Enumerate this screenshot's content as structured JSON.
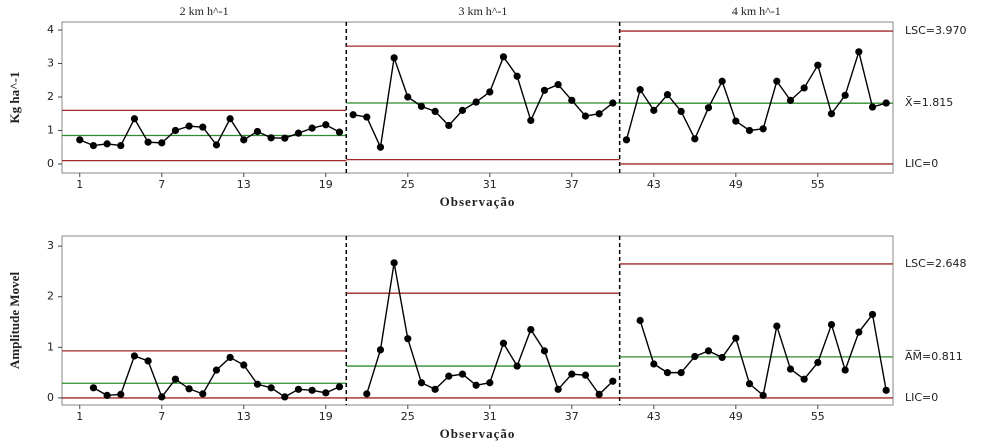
{
  "chart_data": [
    {
      "type": "line",
      "y_label": "Kg ha^-1",
      "x_label": "Observação",
      "x": [
        1,
        2,
        3,
        4,
        5,
        6,
        7,
        8,
        9,
        10,
        11,
        12,
        13,
        14,
        15,
        16,
        17,
        18,
        19,
        20,
        21,
        22,
        23,
        24,
        25,
        26,
        27,
        28,
        29,
        30,
        31,
        32,
        33,
        34,
        35,
        36,
        37,
        38,
        39,
        40,
        41,
        42,
        43,
        44,
        45,
        46,
        47,
        48,
        49,
        50,
        51,
        52,
        53,
        54,
        55,
        56,
        57,
        58,
        59,
        60
      ],
      "series": [
        {
          "color": "#000000",
          "values": [
            0.72,
            0.55,
            0.6,
            0.55,
            1.35,
            0.65,
            0.63,
            1.0,
            1.13,
            1.1,
            0.57,
            1.35,
            0.72,
            0.97,
            0.78,
            0.77,
            0.92,
            1.07,
            1.17,
            0.95,
            1.47,
            1.4,
            0.5,
            3.17,
            2.0,
            1.72,
            1.57,
            1.15,
            1.6,
            1.85,
            2.15,
            3.2,
            2.62,
            1.3,
            2.2,
            2.37,
            1.9,
            1.43,
            1.5,
            1.82,
            0.72,
            2.22,
            1.6,
            2.07,
            1.57,
            0.75,
            1.68,
            2.47,
            1.28,
            1.0,
            1.05,
            2.47,
            1.9,
            2.27,
            2.95,
            1.5,
            2.05,
            3.35,
            1.7,
            1.82
          ]
        }
      ],
      "phases": [
        {
          "label": "2 km h^-1",
          "start": 1,
          "end": 20,
          "ucl": 1.6,
          "center": 0.85,
          "lcl": 0.1
        },
        {
          "label": "3 km h^-1",
          "start": 21,
          "end": 40,
          "ucl": 3.52,
          "center": 1.82,
          "lcl": 0.13
        },
        {
          "label": "4 km h^-1",
          "start": 41,
          "end": 60,
          "ucl": 3.97,
          "center": 1.815,
          "lcl": 0
        }
      ],
      "limit_labels": [
        "LSC=3.970",
        "X̄=1.815",
        "LIC=0"
      ],
      "limit_color": "#a02828",
      "center_color": "#2e8b2e",
      "xlim": [
        -0.3,
        60.5
      ],
      "xticks": [
        1,
        7,
        13,
        19,
        25,
        31,
        37,
        43,
        49,
        55
      ],
      "ylim": [
        -0.27,
        4.24
      ],
      "yticks": [
        0,
        1,
        2,
        3,
        4
      ]
    },
    {
      "type": "line",
      "y_label": "Amplitude Movel",
      "x_label": "Observação",
      "x": [
        1,
        2,
        3,
        4,
        5,
        6,
        7,
        8,
        9,
        10,
        11,
        12,
        13,
        14,
        15,
        16,
        17,
        18,
        19,
        20,
        21,
        22,
        23,
        24,
        25,
        26,
        27,
        28,
        29,
        30,
        31,
        32,
        33,
        34,
        35,
        36,
        37,
        38,
        39,
        40,
        41,
        42,
        43,
        44,
        45,
        46,
        47,
        48,
        49,
        50,
        51,
        52,
        53,
        54,
        55,
        56,
        57,
        58,
        59,
        60
      ],
      "series": [
        {
          "color": "#000000",
          "values": [
            null,
            0.2,
            0.05,
            0.07,
            0.83,
            0.73,
            0.02,
            0.37,
            0.18,
            0.08,
            0.55,
            0.8,
            0.65,
            0.27,
            0.2,
            0.02,
            0.17,
            0.15,
            0.1,
            0.22,
            null,
            0.08,
            0.95,
            2.67,
            1.17,
            0.3,
            0.17,
            0.43,
            0.47,
            0.25,
            0.3,
            1.08,
            0.63,
            1.35,
            0.93,
            0.17,
            0.47,
            0.45,
            0.07,
            0.33,
            null,
            1.53,
            0.67,
            0.5,
            0.5,
            0.82,
            0.93,
            0.8,
            1.18,
            0.28,
            0.05,
            1.42,
            0.57,
            0.37,
            0.7,
            1.45,
            0.55,
            1.3,
            1.65,
            0.15
          ]
        }
      ],
      "phases": [
        {
          "start": 1,
          "end": 20,
          "ucl": 0.93,
          "center": 0.29,
          "lcl": 0
        },
        {
          "start": 21,
          "end": 40,
          "ucl": 2.07,
          "center": 0.63,
          "lcl": 0
        },
        {
          "start": 41,
          "end": 60,
          "ucl": 2.648,
          "center": 0.811,
          "lcl": 0
        }
      ],
      "limit_labels": [
        "LSC=2.648",
        "A̅M̅=0.811",
        "LIC=0"
      ],
      "limit_color": "#a02828",
      "center_color": "#2e8b2e",
      "xlim": [
        -0.3,
        60.5
      ],
      "xticks": [
        1,
        7,
        13,
        19,
        25,
        31,
        37,
        43,
        49,
        55
      ],
      "ylim": [
        -0.14,
        3.2
      ],
      "yticks": [
        0,
        1,
        2,
        3
      ]
    }
  ]
}
